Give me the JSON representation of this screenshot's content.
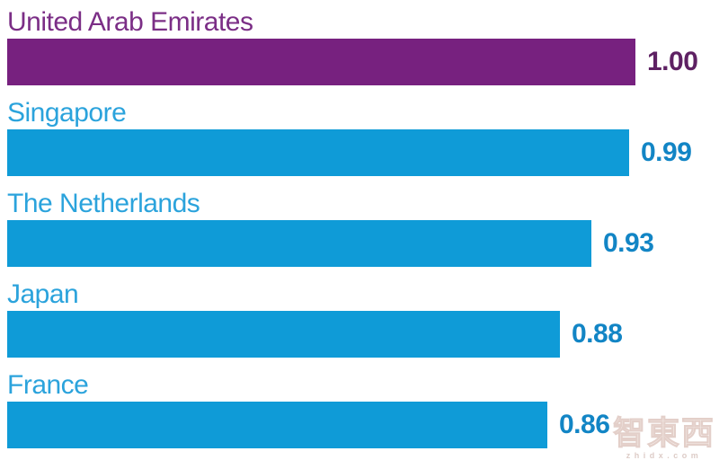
{
  "chart_data": {
    "type": "bar",
    "orientation": "horizontal",
    "title": "",
    "xlabel": "",
    "ylabel": "",
    "xlim": [
      0,
      1.0
    ],
    "grid": false,
    "legend": false,
    "categories": [
      "United Arab Emirates",
      "Singapore",
      "The Netherlands",
      "Japan",
      "France"
    ],
    "values": [
      1.0,
      0.99,
      0.93,
      0.88,
      0.86
    ],
    "value_labels": [
      "1.00",
      "0.99",
      "0.93",
      "0.88",
      "0.86"
    ],
    "highlight_category": "United Arab Emirates",
    "highlight_color": "#77217F",
    "default_bar_color": "#0F9BD7"
  },
  "rows": [
    {
      "label": "United Arab Emirates",
      "value_label": "1.00",
      "bar_color": "#77217F",
      "label_color": "#7B2E86",
      "value_color": "#5E2163"
    },
    {
      "label": "Singapore",
      "value_label": "0.99",
      "bar_color": "#0F9BD7",
      "label_color": "#2BA3DC",
      "value_color": "#1285C5"
    },
    {
      "label": "The Netherlands",
      "value_label": "0.93",
      "bar_color": "#0F9BD7",
      "label_color": "#2BA3DC",
      "value_color": "#1285C5"
    },
    {
      "label": "Japan",
      "value_label": "0.88",
      "bar_color": "#0F9BD7",
      "label_color": "#2BA3DC",
      "value_color": "#1285C5"
    },
    {
      "label": "France",
      "value_label": "0.86",
      "bar_color": "#0F9BD7",
      "label_color": "#2BA3DC",
      "value_color": "#1285C5"
    }
  ],
  "watermark": {
    "logo_text": "智東西",
    "url_text": "zhidx.com"
  }
}
